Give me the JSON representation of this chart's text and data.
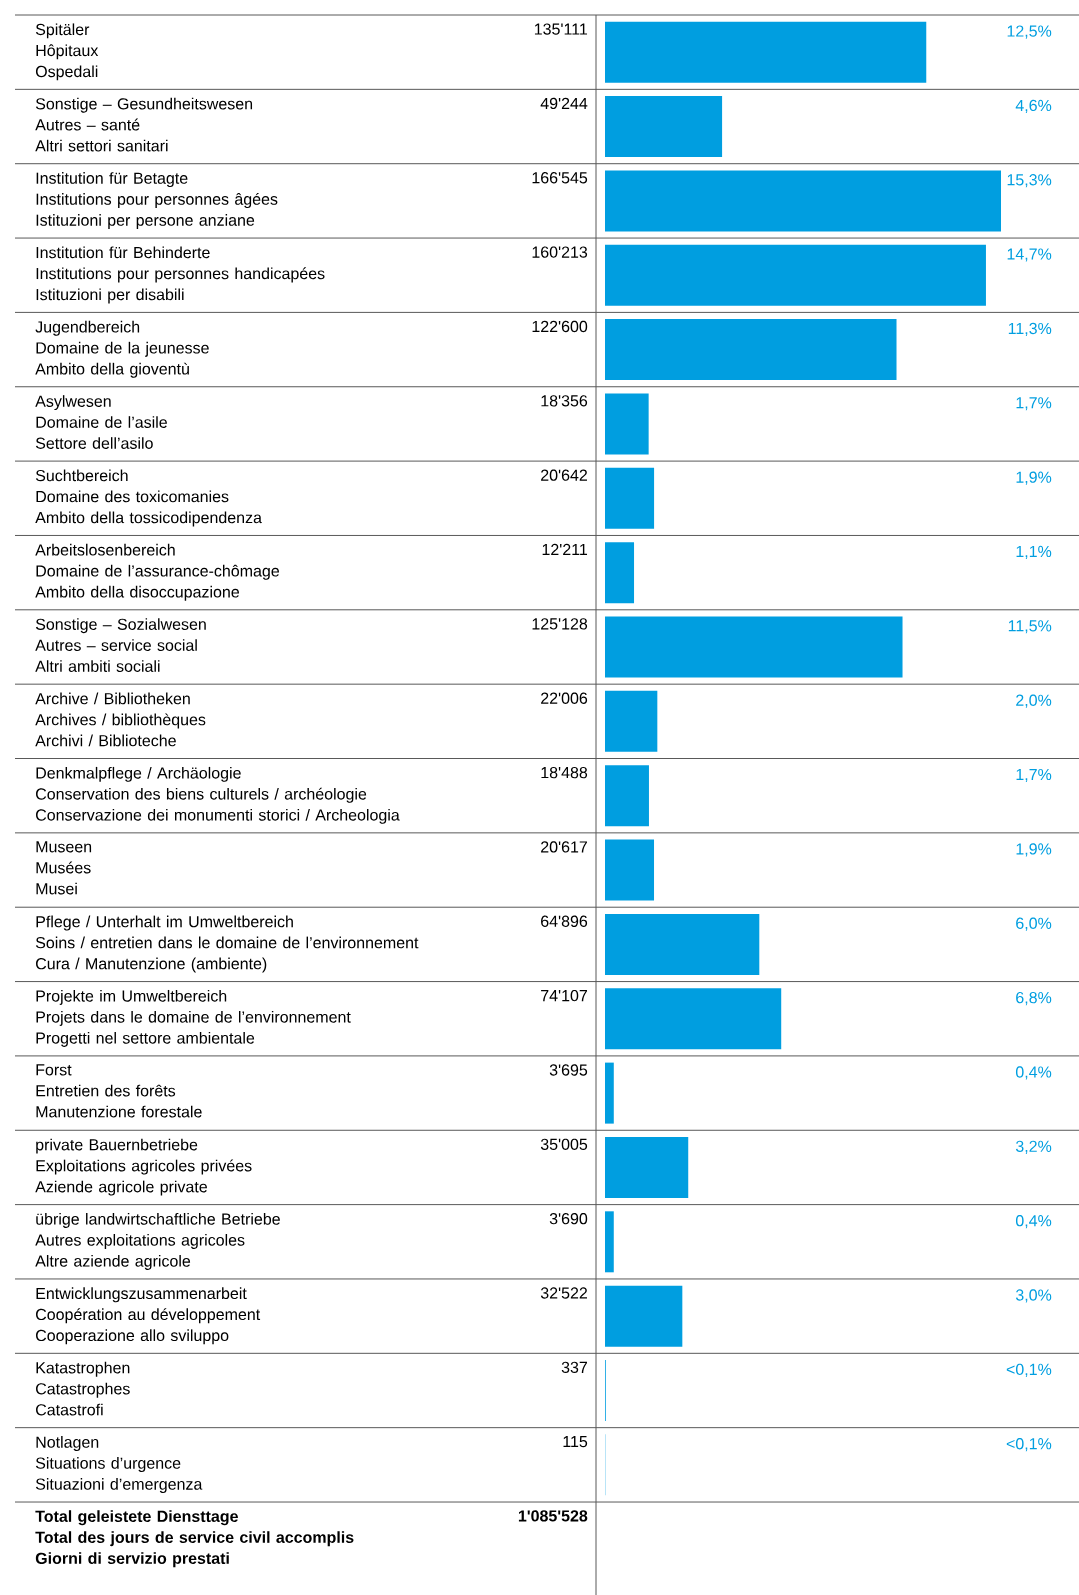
{
  "chart_data": {
    "type": "bar",
    "orientation": "horizontal",
    "color": "#009ee0",
    "categories": [
      "Spitäler\nHôpitaux\nOspedali",
      "Sonstige – Gesundheitswesen\nAutres – santé\nAltri settori sanitari",
      "Institution für Betagte\nInstitutions pour personnes âgées\nIstituzioni per persone anziane",
      "Institution für Behinderte\nInstitutions pour personnes handicapées\nIstituzioni per disabili",
      "Jugendbereich\nDomaine de la jeunesse\nAmbito della gioventù",
      "Asylwesen\nDomaine de l’asile\nSettore dell’asilo",
      "Suchtbereich\nDomaine des toxicomanies\nAmbito della tossicodipendenza",
      "Arbeitslosenbereich\nDomaine de l’assurance-chômage\nAmbito della disoccupazione",
      "Sonstige – Sozialwesen\nAutres – service social\nAltri ambiti sociali",
      "Archive / Bibliotheken\nArchives / bibliothèques\nArchivi / Biblioteche",
      "Denkmalpflege / Archäologie\nConservation des biens culturels / archéologie\nConservazione dei monumenti storici / Archeologia",
      "Museen\nMusées\nMusei",
      "Pflege / Unterhalt im Umweltbereich\nSoins / entretien dans le domaine de l’environnement\nCura / Manutenzione (ambiente)",
      "Projekte im Umweltbereich\nProjets dans le domaine de l’environnement\nProgetti nel settore ambientale",
      "Forst\nEntretien des forêts\nManutenzione forestale",
      "private Bauernbetriebe\nExploitations agricoles privées\nAziende agricole private",
      "übrige landwirtschaftliche Betriebe\nAutres exploitations agricoles\nAltre aziende agricole",
      "Entwicklungszusammenarbeit\nCoopération au développement\nCooperazione allo sviluppo",
      "Katastrophen\nCatastrophes\nCatastrofi",
      "Notlagen\nSituations d’urgence\nSituazioni d’emergenza"
    ],
    "values": [
      135111,
      49244,
      166545,
      160213,
      122600,
      18356,
      20642,
      12211,
      125128,
      22006,
      18488,
      20617,
      64896,
      74107,
      3695,
      35005,
      3690,
      32522,
      337,
      115
    ],
    "value_labels": [
      "135'111",
      "49'244",
      "166'545",
      "160'213",
      "122'600",
      "18'356",
      "20'642",
      "12'211",
      "125'128",
      "22'006",
      "18'488",
      "20'617",
      "64'896",
      "74'107",
      "3'695",
      "35'005",
      "3'690",
      "32'522",
      "337",
      "115"
    ],
    "annotations": [
      "12,5%",
      "4,6%",
      "15,3%",
      "14,7%",
      "11,3%",
      "1,7%",
      "1,9%",
      "1,1%",
      "11,5%",
      "2,0%",
      "1,7%",
      "1,9%",
      "6,0%",
      "6,8%",
      "0,4%",
      "3,2%",
      "0,4%",
      "3,0%",
      "<0,1%",
      "<0,1%",
      "Total geleistete Diensttage\nTotal des jours de service civil accomplis\nGiorni di servizio prestati",
      "1'085'528"
    ]
  }
}
